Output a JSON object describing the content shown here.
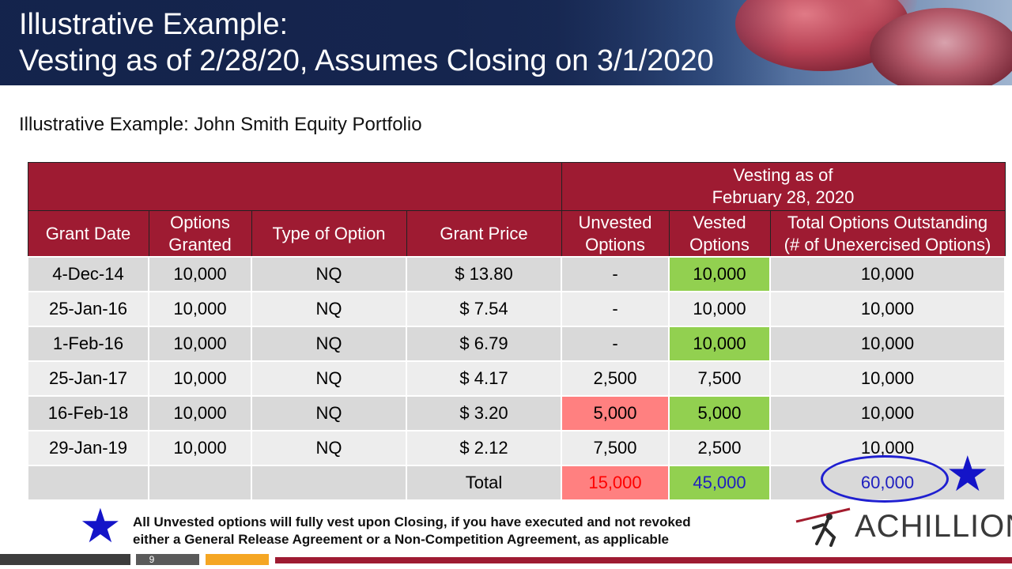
{
  "header": {
    "title_line1": "Illustrative Example:",
    "title_line2": "Vesting as of 2/28/20, Assumes Closing on 3/1/2020"
  },
  "subtitle": "Illustrative Example:  John Smith Equity Portfolio",
  "table": {
    "group_header_line1": "Vesting as of",
    "group_header_line2": "February 28, 2020",
    "columns": {
      "grant_date": "Grant Date",
      "options_granted_1": "Options",
      "options_granted_2": "Granted",
      "type": "Type of Option",
      "grant_price": "Grant Price",
      "unvested_1": "Unvested",
      "unvested_2": "Options",
      "vested_1": "Vested",
      "vested_2": "Options",
      "total_1": "Total Options Outstanding",
      "total_2": "(# of Unexercised Options)"
    },
    "rows": [
      {
        "date": "4-Dec-14",
        "granted": "10,000",
        "type": "NQ",
        "price": "$ 13.80",
        "unvested": "-",
        "vested": "10,000",
        "total": "10,000"
      },
      {
        "date": "25-Jan-16",
        "granted": "10,000",
        "type": "NQ",
        "price": "$ 7.54",
        "unvested": "-",
        "vested": "10,000",
        "total": "10,000"
      },
      {
        "date": "1-Feb-16",
        "granted": "10,000",
        "type": "NQ",
        "price": "$ 6.79",
        "unvested": "-",
        "vested": "10,000",
        "total": "10,000"
      },
      {
        "date": "25-Jan-17",
        "granted": "10,000",
        "type": "NQ",
        "price": "$ 4.17",
        "unvested": "2,500",
        "vested": "7,500",
        "total": "10,000"
      },
      {
        "date": "16-Feb-18",
        "granted": "10,000",
        "type": "NQ",
        "price": "$ 3.20",
        "unvested": "5,000",
        "vested": "5,000",
        "total": "10,000"
      },
      {
        "date": "29-Jan-19",
        "granted": "10,000",
        "type": "NQ",
        "price": "$ 2.12",
        "unvested": "7,500",
        "vested": "2,500",
        "total": "10,000"
      }
    ],
    "total_row": {
      "label": "Total",
      "unvested": "15,000",
      "vested": "45,000",
      "total": "60,000"
    }
  },
  "note": {
    "line1": "All Unvested options will fully vest upon Closing, if you have executed and not revoked",
    "line2": "either a General Release Agreement or a Non-Competition Agreement, as applicable"
  },
  "logo": {
    "text": "ACHILLION"
  },
  "footer": {
    "page_number": "9"
  },
  "colors": {
    "header_red": "#9e1b32",
    "vested_green": "#92d050",
    "unvested_red": "#ff8080",
    "accent_blue": "#1414c8",
    "footer_orange": "#f5a623"
  },
  "icons": [
    "star-icon",
    "highlight-circle",
    "achillion-logo-icon"
  ]
}
